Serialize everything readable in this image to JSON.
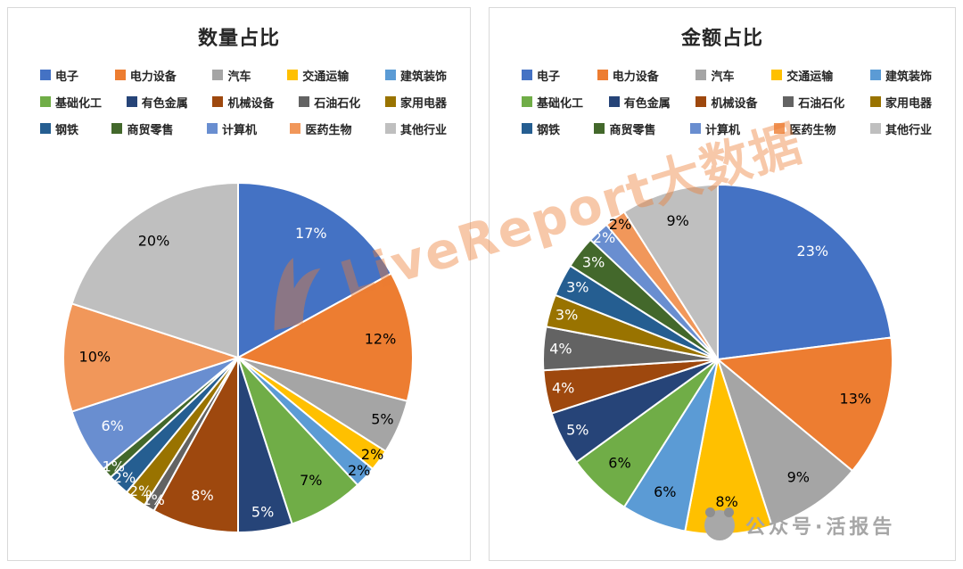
{
  "watermark": {
    "text": "LiveReport大数据",
    "brand_color": "#ED7D31"
  },
  "footer_badge": {
    "text": "公众号·活报告"
  },
  "legend": {
    "items": [
      {
        "label": "电子",
        "color": "#4472C4"
      },
      {
        "label": "电力设备",
        "color": "#ED7D31"
      },
      {
        "label": "汽车",
        "color": "#A5A5A5"
      },
      {
        "label": "交通运输",
        "color": "#FFC000"
      },
      {
        "label": "建筑装饰",
        "color": "#5B9BD5"
      },
      {
        "label": "基础化工",
        "color": "#70AD47"
      },
      {
        "label": "有色金属",
        "color": "#264478"
      },
      {
        "label": "机械设备",
        "color": "#9E480E"
      },
      {
        "label": "石油石化",
        "color": "#636363"
      },
      {
        "label": "家用电器",
        "color": "#997300"
      },
      {
        "label": "钢铁",
        "color": "#255E91"
      },
      {
        "label": "商贸零售",
        "color": "#43682B"
      },
      {
        "label": "计算机",
        "color": "#698ED0"
      },
      {
        "label": "医药生物",
        "color": "#F1975A"
      },
      {
        "label": "其他行业",
        "color": "#BFBFBF"
      }
    ]
  },
  "chart_data": [
    {
      "type": "pie",
      "title": "数量占比",
      "categories": [
        "电子",
        "电力设备",
        "汽车",
        "交通运输",
        "建筑装饰",
        "基础化工",
        "有色金属",
        "机械设备",
        "石油石化",
        "家用电器",
        "钢铁",
        "商贸零售",
        "计算机",
        "医药生物",
        "其他行业"
      ],
      "values": [
        17,
        12,
        5,
        2,
        2,
        7,
        5,
        8,
        1,
        2,
        2,
        1,
        6,
        10,
        20
      ],
      "labels": [
        "17%",
        "12%",
        "5%",
        "2%",
        "2%",
        "7%",
        "5%",
        "8%",
        "1%",
        "2%",
        "2%",
        "1%",
        "6%",
        "10%",
        "20%"
      ],
      "colors": [
        "#4472C4",
        "#ED7D31",
        "#A5A5A5",
        "#FFC000",
        "#5B9BD5",
        "#70AD47",
        "#264478",
        "#9E480E",
        "#636363",
        "#997300",
        "#255E91",
        "#43682B",
        "#698ED0",
        "#F1975A",
        "#BFBFBF"
      ],
      "label_colors": [
        "#FFFFFF",
        "#000000",
        "#000000",
        "#000000",
        "#000000",
        "#000000",
        "#FFFFFF",
        "#FFFFFF",
        "#FFFFFF",
        "#FFFFFF",
        "#FFFFFF",
        "#FFFFFF",
        "#FFFFFF",
        "#000000",
        "#000000"
      ],
      "start_angle_deg": 0,
      "direction": "clockwise",
      "legend_position": "top"
    },
    {
      "type": "pie",
      "title": "金额占比",
      "categories": [
        "电子",
        "电力设备",
        "汽车",
        "交通运输",
        "建筑装饰",
        "基础化工",
        "有色金属",
        "机械设备",
        "石油石化",
        "家用电器",
        "钢铁",
        "商贸零售",
        "计算机",
        "医药生物",
        "其他行业"
      ],
      "values": [
        23,
        13,
        9,
        8,
        6,
        6,
        5,
        4,
        4,
        3,
        3,
        3,
        2,
        2,
        9
      ],
      "labels": [
        "23%",
        "13%",
        "9%",
        "8%",
        "6%",
        "6%",
        "5%",
        "4%",
        "4%",
        "3%",
        "3%",
        "3%",
        "2%",
        "2%",
        "9%"
      ],
      "colors": [
        "#4472C4",
        "#ED7D31",
        "#A5A5A5",
        "#FFC000",
        "#5B9BD5",
        "#70AD47",
        "#264478",
        "#9E480E",
        "#636363",
        "#997300",
        "#255E91",
        "#43682B",
        "#698ED0",
        "#F1975A",
        "#BFBFBF"
      ],
      "label_colors": [
        "#FFFFFF",
        "#000000",
        "#000000",
        "#000000",
        "#000000",
        "#000000",
        "#FFFFFF",
        "#FFFFFF",
        "#FFFFFF",
        "#FFFFFF",
        "#FFFFFF",
        "#FFFFFF",
        "#FFFFFF",
        "#000000",
        "#000000"
      ],
      "start_angle_deg": 0,
      "direction": "clockwise",
      "legend_position": "top"
    }
  ]
}
